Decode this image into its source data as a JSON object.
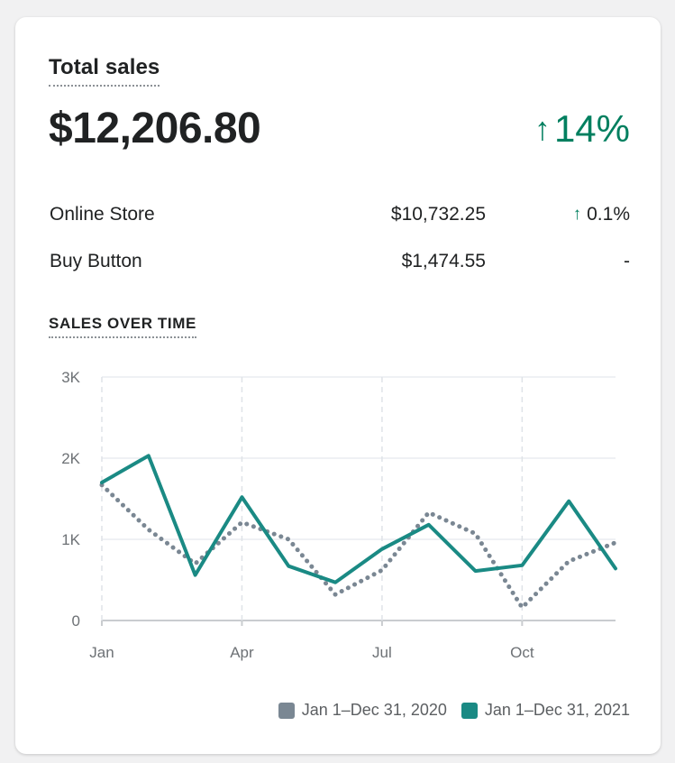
{
  "card": {
    "title": "Total sales",
    "total": "$12,206.80",
    "change": "14%",
    "rows": [
      {
        "name": "Online Store",
        "value": "$10,732.25",
        "pct": "0.1%",
        "trend": "up"
      },
      {
        "name": "Buy Button",
        "value": "$1,474.55",
        "pct": "-",
        "trend": "none"
      }
    ],
    "section_title": "SALES OVER TIME"
  },
  "colors": {
    "primary": "#1a8a84",
    "comparison": "#7a8793",
    "positive": "#007f5f",
    "grid": "#dfe3e8",
    "axis_text": "#6d7175"
  },
  "chart_data": {
    "type": "line",
    "x_ticks": [
      "Jan",
      "Apr",
      "Jul",
      "Oct"
    ],
    "y_ticks": [
      "3K",
      "2K",
      "1K",
      "0"
    ],
    "ylim": [
      0,
      3000
    ],
    "series": [
      {
        "name": "Jan 1–Dec 31, 2020",
        "style": "dotted",
        "values": [
          1670,
          1120,
          700,
          1210,
          1000,
          320,
          620,
          1330,
          1070,
          160,
          730,
          960
        ]
      },
      {
        "name": "Jan 1–Dec 31, 2021",
        "style": "solid",
        "values": [
          1700,
          2030,
          560,
          1520,
          670,
          470,
          880,
          1180,
          610,
          680,
          1470,
          640
        ]
      }
    ],
    "legend_position": "bottom-right"
  }
}
